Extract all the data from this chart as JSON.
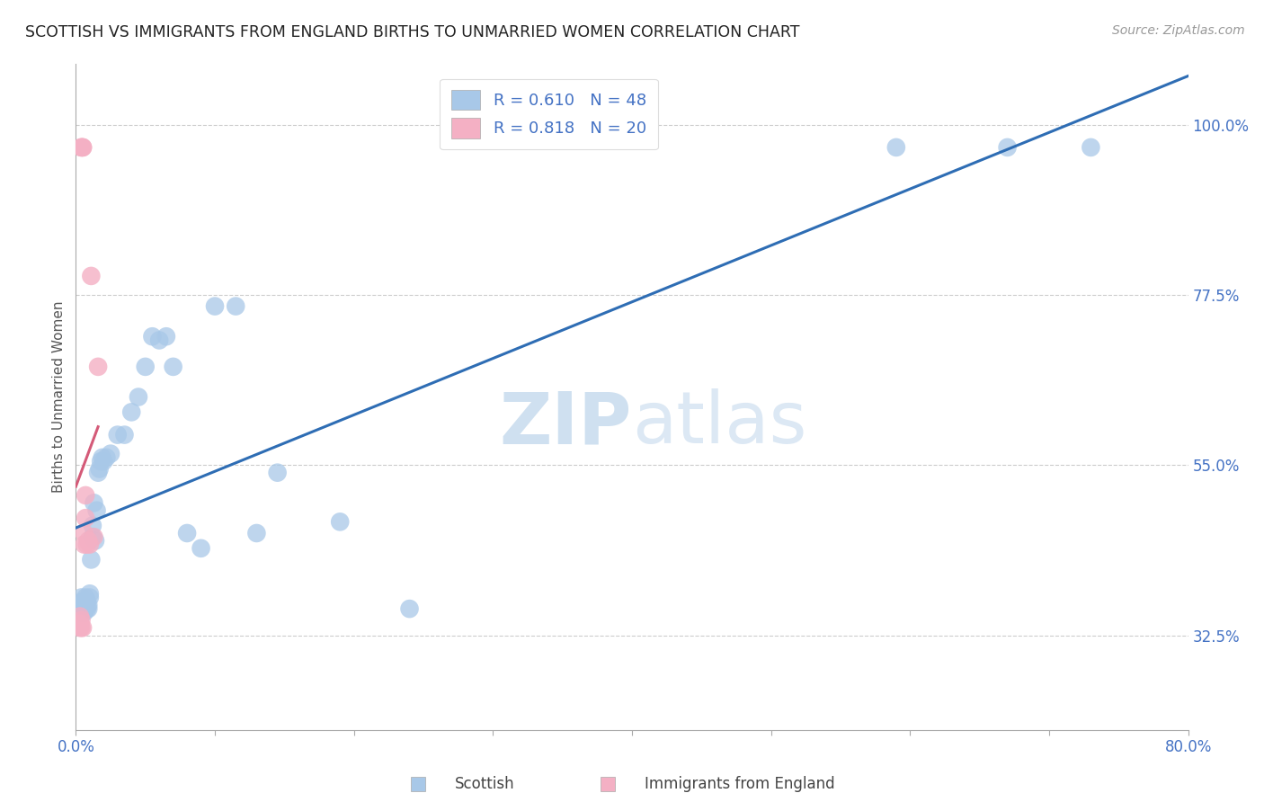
{
  "title": "SCOTTISH VS IMMIGRANTS FROM ENGLAND BIRTHS TO UNMARRIED WOMEN CORRELATION CHART",
  "source": "Source: ZipAtlas.com",
  "ylabel": "Births to Unmarried Women",
  "ytick_labels": [
    "32.5%",
    "55.0%",
    "77.5%",
    "100.0%"
  ],
  "ytick_values": [
    0.325,
    0.55,
    0.775,
    1.0
  ],
  "xlim": [
    0.0,
    0.8
  ],
  "ylim": [
    0.2,
    1.08
  ],
  "legend_label1": "Scottish",
  "legend_label2": "Immigrants from England",
  "R_scottish": 0.61,
  "N_scottish": 48,
  "R_immigrants": 0.818,
  "N_immigrants": 20,
  "scottish_color": "#a8c8e8",
  "immigrant_color": "#f4b0c4",
  "regression_blue": "#2e6db4",
  "regression_pink": "#d45a78",
  "watermark_zip": "ZIP",
  "watermark_atlas": "atlas",
  "watermark_color": "#cfe0f0",
  "scottish_x": [
    0.004,
    0.004,
    0.005,
    0.005,
    0.006,
    0.006,
    0.006,
    0.007,
    0.007,
    0.008,
    0.008,
    0.009,
    0.009,
    0.01,
    0.01,
    0.011,
    0.012,
    0.012,
    0.013,
    0.014,
    0.015,
    0.016,
    0.017,
    0.018,
    0.019,
    0.02,
    0.022,
    0.025,
    0.03,
    0.035,
    0.04,
    0.045,
    0.05,
    0.055,
    0.06,
    0.065,
    0.07,
    0.08,
    0.09,
    0.1,
    0.115,
    0.13,
    0.145,
    0.19,
    0.24,
    0.59,
    0.67,
    0.73
  ],
  "scottish_y": [
    0.375,
    0.365,
    0.37,
    0.355,
    0.37,
    0.365,
    0.355,
    0.375,
    0.36,
    0.37,
    0.36,
    0.365,
    0.36,
    0.375,
    0.38,
    0.425,
    0.455,
    0.47,
    0.5,
    0.45,
    0.49,
    0.54,
    0.545,
    0.555,
    0.56,
    0.555,
    0.56,
    0.565,
    0.59,
    0.59,
    0.62,
    0.64,
    0.68,
    0.72,
    0.715,
    0.72,
    0.68,
    0.46,
    0.44,
    0.76,
    0.76,
    0.46,
    0.54,
    0.475,
    0.36,
    0.97,
    0.97,
    0.97
  ],
  "immigrant_x": [
    0.003,
    0.003,
    0.003,
    0.004,
    0.004,
    0.004,
    0.004,
    0.005,
    0.005,
    0.005,
    0.006,
    0.006,
    0.007,
    0.007,
    0.008,
    0.009,
    0.01,
    0.011,
    0.013,
    0.016
  ],
  "immigrant_y": [
    0.335,
    0.34,
    0.35,
    0.335,
    0.345,
    0.97,
    0.97,
    0.97,
    0.97,
    0.335,
    0.445,
    0.46,
    0.48,
    0.51,
    0.445,
    0.45,
    0.445,
    0.8,
    0.455,
    0.68
  ]
}
